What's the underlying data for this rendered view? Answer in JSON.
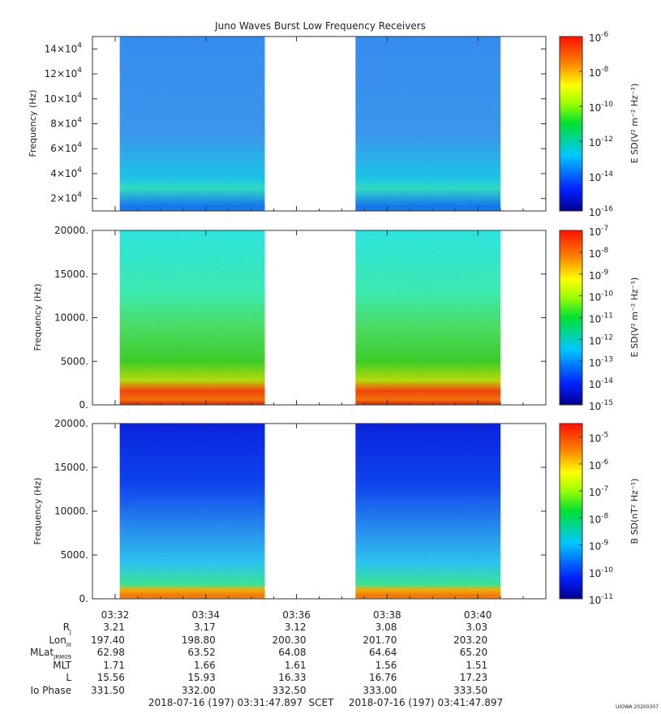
{
  "title": "Juno Waves Burst Low Frequency Receivers",
  "chart_data": [
    {
      "type": "heatmap",
      "ylabel": "Frequency (Hz)",
      "yticks": [
        {
          "value": 20000,
          "base": "2×10",
          "exp": "4"
        },
        {
          "value": 40000,
          "base": "4×10",
          "exp": "4"
        },
        {
          "value": 60000,
          "base": "6×10",
          "exp": "4"
        },
        {
          "value": 80000,
          "base": "8×10",
          "exp": "4"
        },
        {
          "value": 100000,
          "base": "10×10",
          "exp": "4"
        },
        {
          "value": 120000,
          "base": "12×10",
          "exp": "4"
        },
        {
          "value": 140000,
          "base": "14×10",
          "exp": "4"
        }
      ],
      "ylim": [
        10000,
        150000
      ],
      "colorbar": {
        "label": "E SD(V² m⁻² Hz⁻¹)",
        "scale": "log",
        "range": [
          -16,
          -6
        ],
        "ticks": [
          {
            "base": "10",
            "exp": "-6"
          },
          {
            "base": "10",
            "exp": "-8"
          },
          {
            "base": "10",
            "exp": "-10"
          },
          {
            "base": "10",
            "exp": "-12"
          },
          {
            "base": "10",
            "exp": "-14"
          },
          {
            "base": "10",
            "exp": "-16"
          }
        ]
      },
      "data_intervals": [
        [
          "03:32:24",
          "03:35:36"
        ],
        [
          "03:37:36",
          "03:40:48"
        ]
      ],
      "dominant_levels": [
        "blue (~1e-14) above 35 kHz",
        "cyan/green (~1e-13) below 35 kHz"
      ]
    },
    {
      "type": "heatmap",
      "ylabel": "Frequency (Hz)",
      "yticks": [
        {
          "value": 0,
          "base": "0.",
          "exp": ""
        },
        {
          "value": 5000,
          "base": "5000.",
          "exp": ""
        },
        {
          "value": 10000,
          "base": "10000.",
          "exp": ""
        },
        {
          "value": 15000,
          "base": "15000.",
          "exp": ""
        },
        {
          "value": 20000,
          "base": "20000.",
          "exp": ""
        }
      ],
      "ylim": [
        0,
        20000
      ],
      "colorbar": {
        "label": "E SD(V² m⁻² Hz⁻¹)",
        "scale": "log",
        "range": [
          -15,
          -7
        ],
        "ticks": [
          {
            "base": "10",
            "exp": "-7"
          },
          {
            "base": "10",
            "exp": "-8"
          },
          {
            "base": "10",
            "exp": "-9"
          },
          {
            "base": "10",
            "exp": "-10"
          },
          {
            "base": "10",
            "exp": "-11"
          },
          {
            "base": "10",
            "exp": "-12"
          },
          {
            "base": "10",
            "exp": "-13"
          },
          {
            "base": "10",
            "exp": "-14"
          },
          {
            "base": "10",
            "exp": "-15"
          }
        ]
      },
      "data_intervals": [
        [
          "03:32:24",
          "03:35:36"
        ],
        [
          "03:37:36",
          "03:40:48"
        ]
      ],
      "dominant_levels": [
        "cyan (~1e-13) above 10 kHz",
        "green (~1e-12) 2-8 kHz",
        "red (~1e-8) below 1.5 kHz"
      ]
    },
    {
      "type": "heatmap",
      "ylabel": "Frequency (Hz)",
      "yticks": [
        {
          "value": 0,
          "base": "0.",
          "exp": ""
        },
        {
          "value": 5000,
          "base": "5000.",
          "exp": ""
        },
        {
          "value": 10000,
          "base": "10000.",
          "exp": ""
        },
        {
          "value": 15000,
          "base": "15000.",
          "exp": ""
        },
        {
          "value": 20000,
          "base": "20000.",
          "exp": ""
        }
      ],
      "ylim": [
        0,
        20000
      ],
      "colorbar": {
        "label": "B SD(nT² Hz⁻¹)",
        "scale": "log",
        "range": [
          -11,
          -4.5
        ],
        "ticks": [
          {
            "value": -5,
            "base": "10",
            "exp": "-5"
          },
          {
            "value": -6,
            "base": "10",
            "exp": "-6"
          },
          {
            "value": -7,
            "base": "10",
            "exp": "-7"
          },
          {
            "value": -8,
            "base": "10",
            "exp": "-8"
          },
          {
            "value": -9,
            "base": "10",
            "exp": "-9"
          },
          {
            "value": -10,
            "base": "10",
            "exp": "-10"
          },
          {
            "value": -11,
            "base": "10",
            "exp": "-11"
          }
        ]
      },
      "data_intervals": [
        [
          "03:32:24",
          "03:35:36"
        ],
        [
          "03:37:36",
          "03:40:48"
        ]
      ],
      "dominant_levels": [
        "dark blue (~1e-10.5) above 12 kHz",
        "blue/cyan (~1e-9) 2-10 kHz",
        "orange (~1e-6) below 1 kHz"
      ]
    }
  ],
  "xaxis": {
    "tick_labels": [
      "03:32",
      "03:34",
      "03:36",
      "03:38",
      "03:40"
    ],
    "tick_minutes": [
      0.5,
      2.5,
      4.5,
      6.5,
      8.5
    ]
  },
  "ephemeris": {
    "labels": [
      "R",
      "Lon",
      "MLat",
      "MLT",
      "L",
      "Io Phase"
    ],
    "label_subs": [
      "J",
      "III",
      "JRM09",
      "",
      "",
      ""
    ],
    "columns": [
      [
        "3.21",
        "197.40",
        "62.98",
        "1.71",
        "15.56",
        "331.50"
      ],
      [
        "3.17",
        "198.80",
        "63.52",
        "1.66",
        "15.93",
        "332.00"
      ],
      [
        "3.12",
        "200.30",
        "64.08",
        "1.61",
        "16.33",
        "332.50"
      ],
      [
        "3.08",
        "201.70",
        "64.64",
        "1.56",
        "16.76",
        "333.00"
      ],
      [
        "3.03",
        "203.20",
        "65.20",
        "1.51",
        "17.23",
        "333.50"
      ]
    ]
  },
  "footer": {
    "start": "2018-07-16 (197) 03:31:47.897",
    "frame": "SCET",
    "end": "2018-07-16 (197) 03:41:47.897",
    "credit": "UIOWA 20200307"
  }
}
